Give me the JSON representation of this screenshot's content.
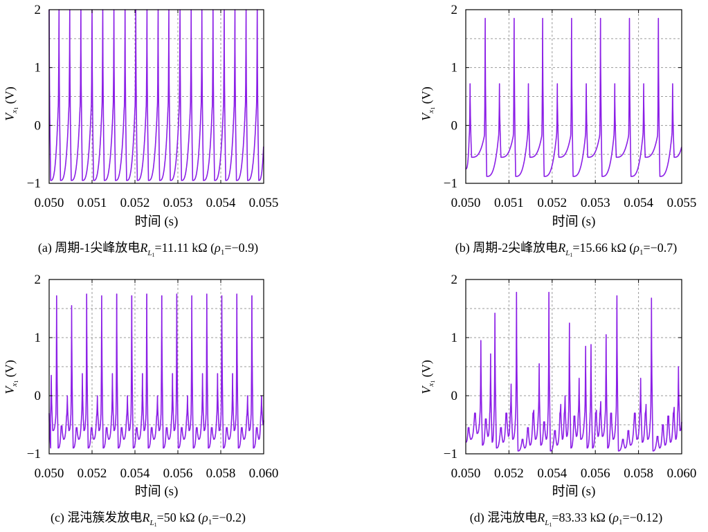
{
  "figure": {
    "trace_color": "#8b1ee6"
  },
  "chart_data": [
    {
      "id": "a",
      "type": "line",
      "caption": "(a) 周期-1尖峰放电R_{L1}=11.11 kΩ (ρ1=−0.9)",
      "caption_parts": {
        "prefix": "(a) 周期-1尖峰放电",
        "R": "R",
        "Rsub": "L",
        "Rsub2": "1",
        "value": "=11.11 kΩ (",
        "rho": "ρ",
        "rhosub": "1",
        "rhoval": "=−0.9)"
      },
      "ylabel_parts": {
        "V": "V",
        "sub": "x",
        "sub2": "1",
        "unit": "(V)"
      },
      "xlabel": "时间 (s)",
      "xlim": [
        0.05,
        0.055
      ],
      "ylim": [
        -1,
        2
      ],
      "x_ticks": [
        "0.050",
        "0.051",
        "0.052",
        "0.053",
        "0.054",
        "0.055"
      ],
      "y_ticks": [
        "−1",
        "0",
        "1",
        "2"
      ],
      "grid": true,
      "trace": {
        "baseline": -0.95,
        "recovery_end": 0.3,
        "start_value": 2.0,
        "spikes": [
          {
            "t": 0.05023,
            "v": 2.0
          },
          {
            "t": 0.05048,
            "v": 2.0
          },
          {
            "t": 0.05074,
            "v": 2.0
          },
          {
            "t": 0.051,
            "v": 2.0
          },
          {
            "t": 0.05125,
            "v": 2.0
          },
          {
            "t": 0.05151,
            "v": 2.0
          },
          {
            "t": 0.05177,
            "v": 2.0
          },
          {
            "t": 0.05202,
            "v": 2.0
          },
          {
            "t": 0.05228,
            "v": 2.0
          },
          {
            "t": 0.05254,
            "v": 2.0
          },
          {
            "t": 0.05279,
            "v": 2.0
          },
          {
            "t": 0.05305,
            "v": 2.0
          },
          {
            "t": 0.05331,
            "v": 2.0
          },
          {
            "t": 0.05356,
            "v": 2.0
          },
          {
            "t": 0.05382,
            "v": 2.0
          },
          {
            "t": 0.05408,
            "v": 2.0
          },
          {
            "t": 0.05433,
            "v": 2.0
          },
          {
            "t": 0.05459,
            "v": 2.0
          },
          {
            "t": 0.05485,
            "v": 2.0
          }
        ]
      }
    },
    {
      "id": "b",
      "type": "line",
      "caption_parts": {
        "prefix": "(b) 周期-2尖峰放电",
        "R": "R",
        "Rsub": "L",
        "Rsub2": "1",
        "value": "=15.66 kΩ (",
        "rho": "ρ",
        "rhosub": "1",
        "rhoval": "=−0.7)"
      },
      "ylabel_parts": {
        "V": "V",
        "sub": "x",
        "sub2": "1",
        "unit": "(V)"
      },
      "xlabel": "时间 (s)",
      "xlim": [
        0.05,
        0.055
      ],
      "ylim": [
        -1,
        2
      ],
      "x_ticks": [
        "0.050",
        "0.051",
        "0.052",
        "0.053",
        "0.054",
        "0.055"
      ],
      "y_ticks": [
        "−1",
        "0",
        "1",
        "2"
      ],
      "grid": true,
      "trace": {
        "baseline": -0.92,
        "recovery_end": -0.18,
        "start_value": -0.75,
        "spikes": [
          {
            "t": 0.0501,
            "v": 0.72,
            "min": -0.55
          },
          {
            "t": 0.05045,
            "v": 1.85,
            "min": -0.88
          },
          {
            "t": 0.05078,
            "v": 0.72,
            "min": -0.55
          },
          {
            "t": 0.05112,
            "v": 1.85,
            "min": -0.88
          },
          {
            "t": 0.05145,
            "v": 0.72,
            "min": -0.55
          },
          {
            "t": 0.05178,
            "v": 1.85,
            "min": -0.88
          },
          {
            "t": 0.05212,
            "v": 0.72,
            "min": -0.55
          },
          {
            "t": 0.05245,
            "v": 1.85,
            "min": -0.88
          },
          {
            "t": 0.05279,
            "v": 0.72,
            "min": -0.55
          },
          {
            "t": 0.05312,
            "v": 1.85,
            "min": -0.88
          },
          {
            "t": 0.05345,
            "v": 0.72,
            "min": -0.55
          },
          {
            "t": 0.05379,
            "v": 1.85,
            "min": -0.88
          },
          {
            "t": 0.05412,
            "v": 0.72,
            "min": -0.55
          },
          {
            "t": 0.05446,
            "v": 1.85,
            "min": -0.88
          },
          {
            "t": 0.05479,
            "v": 0.72,
            "min": -0.55
          }
        ]
      }
    },
    {
      "id": "c",
      "type": "line",
      "caption_parts": {
        "prefix": "(c) 混沌簇发放电",
        "R": "R",
        "Rsub": "L",
        "Rsub2": "1",
        "value": "=50 kΩ (",
        "rho": "ρ",
        "rhosub": "1",
        "rhoval": "=−0.2)"
      },
      "ylabel_parts": {
        "V": "V",
        "sub": "x",
        "sub2": "1",
        "unit": "(V)"
      },
      "xlabel": "时间 (s)",
      "xlim": [
        0.05,
        0.06
      ],
      "ylim": [
        -1,
        2
      ],
      "x_ticks": [
        "0.050",
        "0.052",
        "0.054",
        "0.056",
        "0.058",
        "0.060"
      ],
      "y_ticks": [
        "−1",
        "0",
        "1",
        "2"
      ],
      "grid": true,
      "trace": {
        "baseline": -0.9,
        "recovery_end": -0.35,
        "start_value": -0.3,
        "spikes": [
          {
            "t": 0.0501,
            "v": 0.35,
            "min": -0.6
          },
          {
            "t": 0.05035,
            "v": 1.72,
            "min": -0.9
          },
          {
            "t": 0.0506,
            "v": -0.52,
            "min": -0.75
          },
          {
            "t": 0.05085,
            "v": 0.0,
            "min": -0.6
          },
          {
            "t": 0.05105,
            "v": 1.55,
            "min": -0.9
          },
          {
            "t": 0.0513,
            "v": -0.55,
            "min": -0.75
          },
          {
            "t": 0.05155,
            "v": 0.38,
            "min": -0.6
          },
          {
            "t": 0.05175,
            "v": 1.75,
            "min": -0.9
          },
          {
            "t": 0.052,
            "v": -0.55,
            "min": -0.75
          },
          {
            "t": 0.05225,
            "v": 0.0,
            "min": -0.6
          },
          {
            "t": 0.05245,
            "v": 1.72,
            "min": -0.9
          },
          {
            "t": 0.0527,
            "v": -0.55,
            "min": -0.75
          },
          {
            "t": 0.05295,
            "v": 0.38,
            "min": -0.6
          },
          {
            "t": 0.05315,
            "v": 1.75,
            "min": -0.9
          },
          {
            "t": 0.0534,
            "v": -0.55,
            "min": -0.75
          },
          {
            "t": 0.05365,
            "v": 0.0,
            "min": -0.6
          },
          {
            "t": 0.05385,
            "v": 1.72,
            "min": -0.9
          },
          {
            "t": 0.0541,
            "v": -0.55,
            "min": -0.75
          },
          {
            "t": 0.05435,
            "v": 0.38,
            "min": -0.6
          },
          {
            "t": 0.05455,
            "v": 1.75,
            "min": -0.9
          },
          {
            "t": 0.0548,
            "v": -0.55,
            "min": -0.75
          },
          {
            "t": 0.05505,
            "v": 0.0,
            "min": -0.6
          },
          {
            "t": 0.05525,
            "v": 1.72,
            "min": -0.9
          },
          {
            "t": 0.0555,
            "v": -0.55,
            "min": -0.75
          },
          {
            "t": 0.05575,
            "v": 0.38,
            "min": -0.6
          },
          {
            "t": 0.05595,
            "v": 1.75,
            "min": -0.9
          },
          {
            "t": 0.0562,
            "v": -0.55,
            "min": -0.75
          },
          {
            "t": 0.05645,
            "v": 0.0,
            "min": -0.6
          },
          {
            "t": 0.05665,
            "v": 1.72,
            "min": -0.9
          },
          {
            "t": 0.0569,
            "v": -0.55,
            "min": -0.75
          },
          {
            "t": 0.05715,
            "v": 0.38,
            "min": -0.6
          },
          {
            "t": 0.05735,
            "v": 1.75,
            "min": -0.9
          },
          {
            "t": 0.0576,
            "v": -0.55,
            "min": -0.75
          },
          {
            "t": 0.05785,
            "v": 0.38,
            "min": -0.6
          },
          {
            "t": 0.05805,
            "v": 1.72,
            "min": -0.9
          },
          {
            "t": 0.0583,
            "v": -0.55,
            "min": -0.75
          },
          {
            "t": 0.05855,
            "v": 0.38,
            "min": -0.6
          },
          {
            "t": 0.05875,
            "v": 1.75,
            "min": -0.9
          },
          {
            "t": 0.059,
            "v": -0.55,
            "min": -0.75
          },
          {
            "t": 0.05925,
            "v": 0.0,
            "min": -0.6
          },
          {
            "t": 0.05945,
            "v": 1.72,
            "min": -0.9
          },
          {
            "t": 0.0597,
            "v": -0.55,
            "min": -0.75
          },
          {
            "t": 0.0599,
            "v": 0.0,
            "min": -0.5
          }
        ]
      }
    },
    {
      "id": "d",
      "type": "line",
      "caption_parts": {
        "prefix": "(d) 混沌放电",
        "R": "R",
        "Rsub": "L",
        "Rsub2": "1",
        "value": "=83.33 kΩ (",
        "rho": "ρ",
        "rhosub": "1",
        "rhoval": "=−0.12)"
      },
      "ylabel_parts": {
        "V": "V",
        "sub": "x",
        "sub2": "1",
        "unit": "(V)"
      },
      "xlabel": "时间 (s)",
      "xlim": [
        0.05,
        0.06
      ],
      "ylim": [
        -1,
        2
      ],
      "x_ticks": [
        "0.050",
        "0.052",
        "0.054",
        "0.056",
        "0.058",
        "0.060"
      ],
      "y_ticks": [
        "−1",
        "0",
        "1",
        "2"
      ],
      "grid": true,
      "trace": {
        "baseline": -0.85,
        "recovery_end": -0.3,
        "start_value": -0.8,
        "spikes": [
          {
            "t": 0.05015,
            "v": -0.55,
            "min": -0.75
          },
          {
            "t": 0.05045,
            "v": -0.3,
            "min": -0.65
          },
          {
            "t": 0.0507,
            "v": 0.95,
            "min": -0.85
          },
          {
            "t": 0.05095,
            "v": -0.4,
            "min": -0.7
          },
          {
            "t": 0.05115,
            "v": 0.72,
            "min": -0.8
          },
          {
            "t": 0.05135,
            "v": 1.42,
            "min": -0.9
          },
          {
            "t": 0.05165,
            "v": -0.55,
            "min": -0.8
          },
          {
            "t": 0.0519,
            "v": -0.3,
            "min": -0.7
          },
          {
            "t": 0.0521,
            "v": 0.2,
            "min": -0.75
          },
          {
            "t": 0.05235,
            "v": 1.78,
            "min": -0.95
          },
          {
            "t": 0.05265,
            "v": -0.75,
            "min": -0.9
          },
          {
            "t": 0.0529,
            "v": -0.55,
            "min": -0.85
          },
          {
            "t": 0.05315,
            "v": -0.25,
            "min": -0.75
          },
          {
            "t": 0.0534,
            "v": 0.55,
            "min": -0.85
          },
          {
            "t": 0.05365,
            "v": -0.45,
            "min": -0.75
          },
          {
            "t": 0.05385,
            "v": 1.78,
            "min": -0.95
          },
          {
            "t": 0.05415,
            "v": -0.6,
            "min": -0.85
          },
          {
            "t": 0.0544,
            "v": -0.15,
            "min": -0.75
          },
          {
            "t": 0.0546,
            "v": 0.0,
            "min": -0.7
          },
          {
            "t": 0.0548,
            "v": 1.25,
            "min": -0.9
          },
          {
            "t": 0.05505,
            "v": -0.35,
            "min": -0.7
          },
          {
            "t": 0.05525,
            "v": 0.3,
            "min": -0.75
          },
          {
            "t": 0.05555,
            "v": 0.85,
            "min": -0.9
          },
          {
            "t": 0.0558,
            "v": 0.88,
            "min": -0.9
          },
          {
            "t": 0.05605,
            "v": -0.25,
            "min": -0.7
          },
          {
            "t": 0.05625,
            "v": -0.1,
            "min": -0.7
          },
          {
            "t": 0.0565,
            "v": 1.05,
            "min": -0.9
          },
          {
            "t": 0.05675,
            "v": -0.3,
            "min": -0.75
          },
          {
            "t": 0.057,
            "v": 1.72,
            "min": -0.95
          },
          {
            "t": 0.0573,
            "v": -0.75,
            "min": -0.9
          },
          {
            "t": 0.05755,
            "v": -0.6,
            "min": -0.85
          },
          {
            "t": 0.05785,
            "v": -0.3,
            "min": -0.75
          },
          {
            "t": 0.0581,
            "v": 0.3,
            "min": -0.8
          },
          {
            "t": 0.05835,
            "v": -0.15,
            "min": -0.75
          },
          {
            "t": 0.0586,
            "v": 1.68,
            "min": -0.95
          },
          {
            "t": 0.0589,
            "v": -0.7,
            "min": -0.9
          },
          {
            "t": 0.05915,
            "v": -0.5,
            "min": -0.85
          },
          {
            "t": 0.0594,
            "v": -0.35,
            "min": -0.8
          },
          {
            "t": 0.05965,
            "v": -0.2,
            "min": -0.75
          },
          {
            "t": 0.05985,
            "v": 0.5,
            "min": -0.6
          }
        ]
      }
    }
  ]
}
